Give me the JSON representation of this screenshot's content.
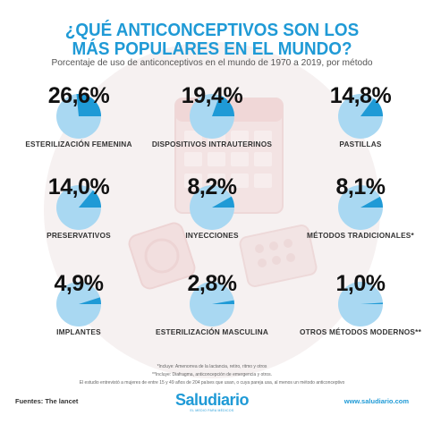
{
  "header": {
    "title_line1": "¿QUÉ ANTICONCEPTIVOS SON LOS",
    "title_line2": "MÁS POPULARES EN EL MUNDO?",
    "subtitle": "Porcentaje de uso de anticonceptivos en el mundo de 1970 a 2019, por método"
  },
  "chart_data": {
    "type": "pie",
    "grid": false,
    "categories": [
      "ESTERILIZACIÓN FEMENINA",
      "DISPOSITIVOS INTRAUTERINOS",
      "PASTILLAS",
      "PRESERVATIVOS",
      "INYECCIONES",
      "MÉTODOS TRADICIONALES*",
      "IMPLANTES",
      "ESTERILIZACIÓN MASCULINA",
      "OTROS MÉTODOS MODERNOS**"
    ],
    "values": [
      26.6,
      19.4,
      14.8,
      14.0,
      8.2,
      8.1,
      4.9,
      2.8,
      1.0
    ],
    "value_labels": [
      "26,6%",
      "19,4%",
      "14,8%",
      "14,0%",
      "8,2%",
      "8,1%",
      "4,9%",
      "2,8%",
      "1,0%"
    ],
    "colors": {
      "remainder": "#a9d8f2",
      "slice": "#1f9ad6"
    }
  },
  "footer": {
    "note1": "*Incluye: Amenorrea de la lactancia, retiro, ritmo y otros",
    "note2": "**Incluye: Diafragma, anticoncepción de emergencia y otros.",
    "note3": "El estudio entrevistó a mujeres de entre 15 y 49 años de 204 países que usan, o cuya pareja usa, al menos un método anticonceptivo",
    "source": "Fuentes: The lancet",
    "brand": "Saludiario",
    "tagline": "EL MEDIO PARA MÉDICOS",
    "url": "www.saludiario.com"
  }
}
